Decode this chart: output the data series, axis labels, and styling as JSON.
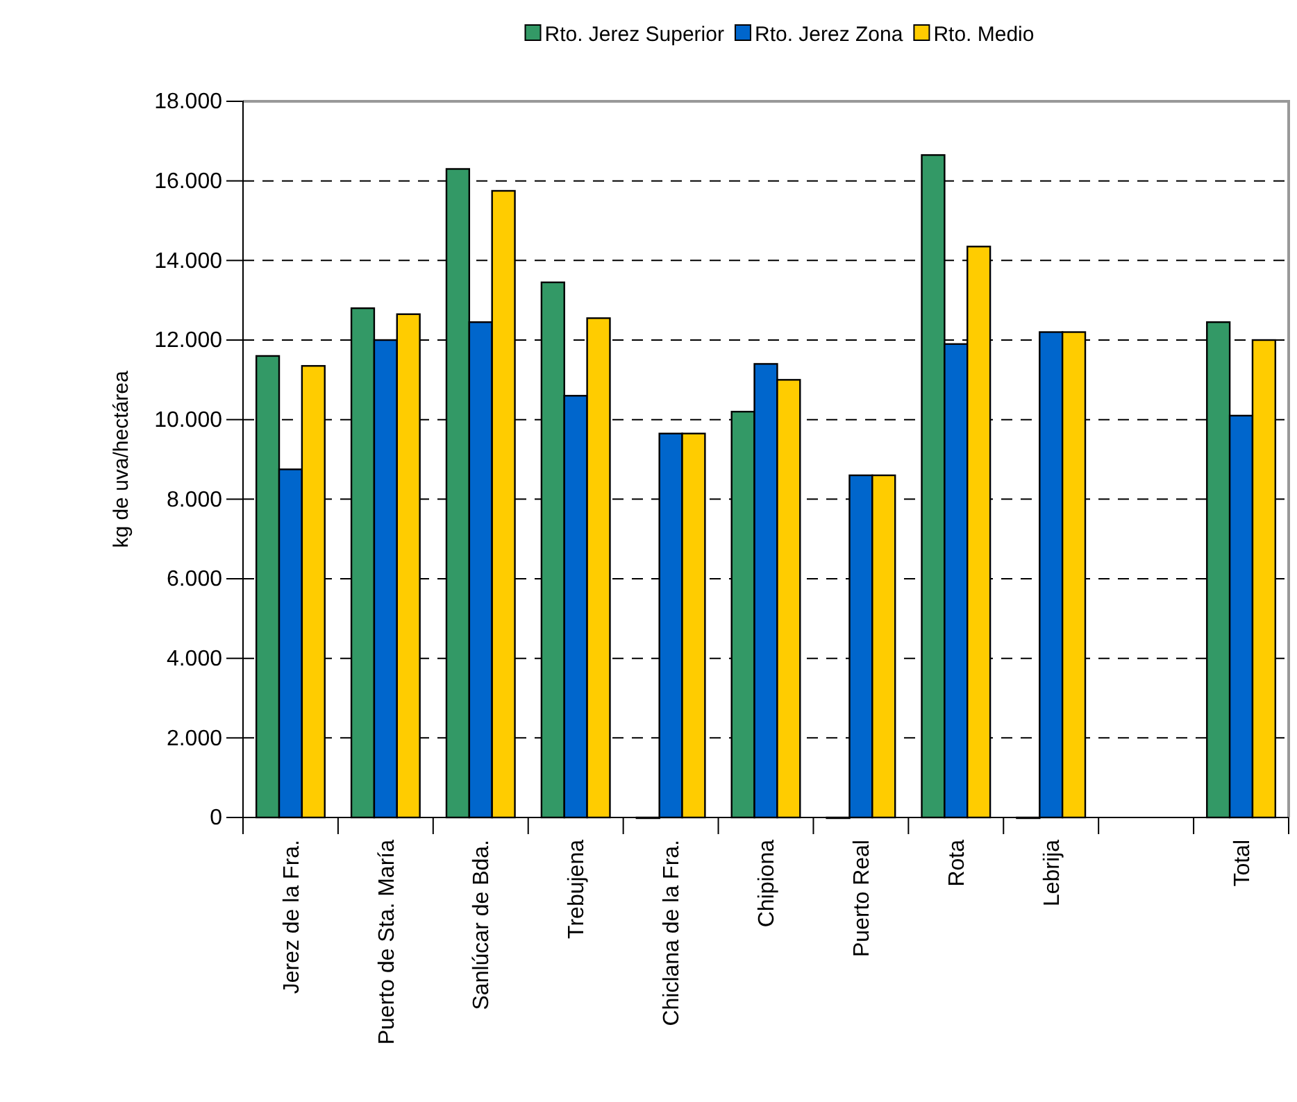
{
  "chart_data": {
    "type": "bar",
    "ylabel": "kg de uva/hectárea",
    "categories": [
      "Jerez de la Fra.",
      "Puerto de Sta. María",
      "Sanlúcar de Bda.",
      "Trebujena",
      "Chiclana de la Fra.",
      "Chipiona",
      "Puerto Real",
      "Rota",
      "Lebrija",
      null,
      "Total"
    ],
    "series": [
      {
        "name": "Rto. Jerez Superior",
        "color": "#339966",
        "values": [
          11600,
          12800,
          16300,
          13450,
          0,
          10200,
          0,
          16650,
          0,
          null,
          12450
        ]
      },
      {
        "name": "Rto. Jerez Zona",
        "color": "#0066cc",
        "values": [
          8750,
          12000,
          12450,
          10600,
          9650,
          11400,
          8600,
          11900,
          12200,
          null,
          10100
        ]
      },
      {
        "name": "Rto. Medio",
        "color": "#ffcc00",
        "values": [
          11350,
          12650,
          15750,
          12550,
          9650,
          11000,
          8600,
          14350,
          12200,
          null,
          12000
        ]
      }
    ],
    "ylim": [
      0,
      18000
    ],
    "yticks": [
      {
        "value": 0,
        "label": "0"
      },
      {
        "value": 2000,
        "label": "2.000"
      },
      {
        "value": 4000,
        "label": "4.000"
      },
      {
        "value": 6000,
        "label": "6.000"
      },
      {
        "value": 8000,
        "label": "8.000"
      },
      {
        "value": 10000,
        "label": "10.000"
      },
      {
        "value": 12000,
        "label": "12.000"
      },
      {
        "value": 14000,
        "label": "14.000"
      },
      {
        "value": 16000,
        "label": "16.000"
      },
      {
        "value": 18000,
        "label": "18.000"
      }
    ],
    "grid": "y",
    "legend": "top"
  }
}
